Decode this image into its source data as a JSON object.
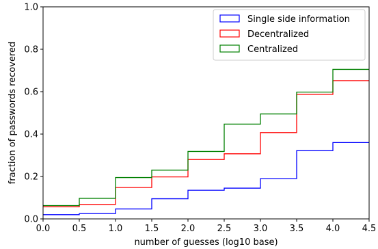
{
  "chart_data": {
    "type": "line",
    "drawstyle": "steps-post",
    "xlabel": "number of guesses (log10 base)",
    "ylabel": "fraction of passwords recovered",
    "xlim": [
      0.0,
      4.5
    ],
    "ylim": [
      0.0,
      1.0
    ],
    "xticks": [
      "0.0",
      "0.5",
      "1.0",
      "1.5",
      "2.0",
      "2.5",
      "3.0",
      "3.5",
      "4.0",
      "4.5"
    ],
    "yticks": [
      "0.0",
      "0.2",
      "0.4",
      "0.6",
      "0.8",
      "1.0"
    ],
    "grid": false,
    "legend_position": "top-right",
    "x": [
      0.0,
      0.5,
      1.0,
      1.5,
      2.0,
      2.5,
      3.0,
      3.5,
      4.0,
      4.5
    ],
    "series": [
      {
        "name": "Single side information",
        "color": "#0000ff",
        "values": [
          0.02,
          0.025,
          0.047,
          0.095,
          0.135,
          0.145,
          0.19,
          0.322,
          0.36,
          0.36
        ]
      },
      {
        "name": "Decentralized",
        "color": "#ff0000",
        "values": [
          0.057,
          0.068,
          0.148,
          0.198,
          0.28,
          0.307,
          0.407,
          0.587,
          0.652,
          0.652
        ]
      },
      {
        "name": "Centralized",
        "color": "#008000",
        "values": [
          0.063,
          0.097,
          0.195,
          0.23,
          0.318,
          0.447,
          0.495,
          0.598,
          0.705,
          0.705
        ]
      }
    ]
  }
}
